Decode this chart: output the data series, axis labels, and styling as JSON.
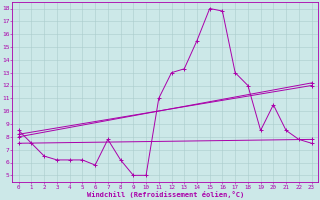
{
  "xlabel": "Windchill (Refroidissement éolien,°C)",
  "background_color": "#cce8e8",
  "line_color": "#aa00aa",
  "xlim": [
    -0.5,
    23.5
  ],
  "ylim": [
    4.5,
    18.5
  ],
  "xticks": [
    0,
    1,
    2,
    3,
    4,
    5,
    6,
    7,
    8,
    9,
    10,
    11,
    12,
    13,
    14,
    15,
    16,
    17,
    18,
    19,
    20,
    21,
    22,
    23
  ],
  "yticks": [
    5,
    6,
    7,
    8,
    9,
    10,
    11,
    12,
    13,
    14,
    15,
    16,
    17,
    18
  ],
  "grid_color": "#aacccc",
  "curves": [
    {
      "x": [
        0,
        1,
        2,
        3,
        4,
        5,
        6,
        7,
        8,
        9,
        10,
        11,
        12,
        13,
        14,
        15,
        16,
        17,
        18,
        19,
        20,
        21,
        22,
        23
      ],
      "y": [
        8.5,
        7.5,
        6.5,
        6.2,
        6.2,
        6.2,
        5.8,
        7.8,
        6.2,
        5.0,
        5.0,
        11.0,
        13.0,
        13.3,
        15.5,
        18.0,
        17.8,
        13.0,
        12.0,
        8.5,
        10.5,
        8.5,
        7.8,
        7.5
      ]
    },
    {
      "x": [
        0,
        23
      ],
      "y": [
        8.0,
        12.2
      ]
    },
    {
      "x": [
        0,
        23
      ],
      "y": [
        8.2,
        12.0
      ]
    },
    {
      "x": [
        0,
        23
      ],
      "y": [
        7.5,
        7.8
      ]
    }
  ]
}
